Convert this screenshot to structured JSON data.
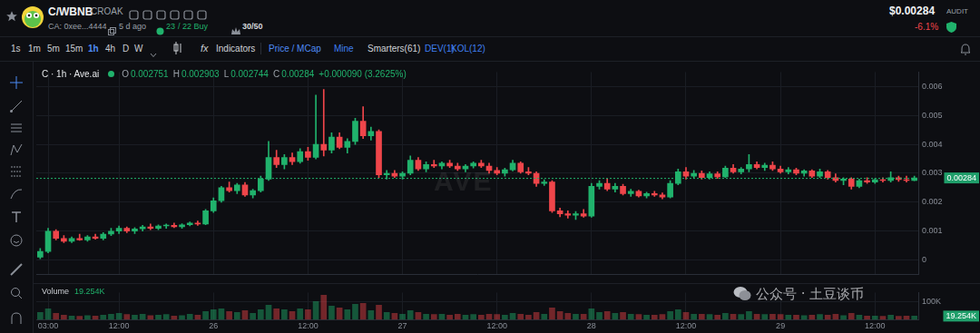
{
  "header": {
    "pair": "C/WBNB",
    "name": "CROAK",
    "contract": "CA: 0xee...4444",
    "age": "5 d ago",
    "txns": [
      "23",
      "/ 22 Buy"
    ],
    "holders": "30/50",
    "price": "$0.00284",
    "change": "-6.1%",
    "audit": "AUDIT"
  },
  "toolbar": {
    "intervals": [
      "1s",
      "1m",
      "5m",
      "15m",
      "1h",
      "4h",
      "D",
      "W"
    ],
    "active": "1h",
    "fx": "fx",
    "items": [
      {
        "text": "Indicators",
        "color": "#d0d3d8"
      },
      {
        "text": "Price / MCap",
        "color": "#4d8bf5"
      },
      {
        "text": "Mine",
        "color": "#3f7ff0"
      },
      {
        "text": "Smarters(61)",
        "color": "#d0d3d8"
      },
      {
        "text": "DEV(1)",
        "color": "#3f7ff0"
      },
      {
        "text": "KOL(12)",
        "color": "#3f7ff0"
      }
    ]
  },
  "legend": {
    "title": "C · 1h · Ave.ai",
    "ohlc": [
      [
        "O",
        "0.002751"
      ],
      [
        "H",
        "0.002903"
      ],
      [
        "L",
        "0.002744"
      ],
      [
        "C",
        "0.00284"
      ]
    ],
    "change": "+0.000090 (3.2625%)"
  },
  "watermarks": [
    "AVE",
    "公众号 · 土豆谈币"
  ],
  "chart_data": [
    {
      "type": "candlestick",
      "categories": [
        null,
        "03:00",
        null,
        null,
        null,
        null,
        null,
        null,
        null,
        null,
        "12:00",
        null,
        null,
        null,
        null,
        null,
        null,
        null,
        null,
        null,
        null,
        null,
        "26",
        null,
        null,
        null,
        null,
        null,
        null,
        null,
        null,
        null,
        null,
        null,
        "12:00",
        null,
        null,
        null,
        null,
        null,
        null,
        null,
        null,
        null,
        null,
        null,
        "27",
        null,
        null,
        null,
        null,
        null,
        null,
        null,
        null,
        null,
        null,
        null,
        "12:00",
        null,
        null,
        null,
        null,
        null,
        null,
        null,
        null,
        null,
        null,
        null,
        "28",
        null,
        null,
        null,
        null,
        null,
        null,
        null,
        null,
        null,
        null,
        null,
        "12:00",
        null,
        null,
        null,
        null,
        null,
        null,
        null,
        null,
        null,
        null,
        null,
        "29",
        null,
        null,
        null,
        null,
        null,
        null,
        null,
        null,
        null,
        null,
        null,
        "12:00",
        null,
        null,
        null,
        null,
        null
      ],
      "open": [
        0.0001,
        0.0003,
        0.001,
        0.00075,
        0.00065,
        0.00075,
        0.0007,
        0.0008,
        0.00075,
        0.0009,
        0.001,
        0.0011,
        0.001,
        0.00108,
        0.00115,
        0.0011,
        0.00118,
        0.0012,
        0.00115,
        0.00122,
        0.00128,
        0.00125,
        0.0017,
        0.00205,
        0.0025,
        0.0024,
        0.0026,
        0.00225,
        0.0024,
        0.0028,
        0.00355,
        0.0033,
        0.00355,
        0.0034,
        0.00375,
        0.00355,
        0.004,
        0.0038,
        0.00425,
        0.0039,
        0.0041,
        0.0048,
        0.0043,
        0.00445,
        0.00295,
        0.003,
        0.0029,
        0.003,
        0.00345,
        0.00315,
        0.0033,
        0.00325,
        0.00335,
        0.00325,
        0.00315,
        0.00325,
        0.00335,
        0.00325,
        0.0031,
        0.003,
        0.00312,
        0.00335,
        0.00305,
        0.003,
        0.00265,
        0.0027,
        0.0017,
        0.0016,
        0.00155,
        0.0016,
        0.00152,
        0.00255,
        0.00265,
        0.00245,
        0.00255,
        0.0023,
        0.00238,
        0.00222,
        0.0023,
        0.00225,
        0.00218,
        0.00265,
        0.00305,
        0.0029,
        0.003,
        0.00285,
        0.00298,
        0.00288,
        0.00318,
        0.00305,
        0.00315,
        0.0033,
        0.0032,
        0.00328,
        0.00315,
        0.00305,
        0.00312,
        0.003,
        0.00308,
        0.0029,
        0.00305,
        0.00285,
        0.00275,
        0.0028,
        0.00255,
        0.00275,
        0.0027,
        0.00278,
        0.00275,
        0.00285,
        0.00278,
        0.002751
      ],
      "high": [
        0.0004,
        0.0011,
        0.00105,
        0.00085,
        0.0008,
        0.0009,
        0.00085,
        0.0009,
        0.00095,
        0.0011,
        0.00118,
        0.00115,
        0.00112,
        0.0012,
        0.00125,
        0.00122,
        0.00125,
        0.00128,
        0.00126,
        0.00132,
        0.00135,
        0.00175,
        0.00215,
        0.00255,
        0.0027,
        0.00265,
        0.00268,
        0.00245,
        0.0029,
        0.0041,
        0.0038,
        0.00365,
        0.0037,
        0.00385,
        0.0039,
        0.0057,
        0.0059,
        0.0044,
        0.0044,
        0.0042,
        0.0049,
        0.0053,
        0.0046,
        0.0045,
        0.0031,
        0.0031,
        0.00305,
        0.0036,
        0.00355,
        0.0034,
        0.00345,
        0.0034,
        0.00345,
        0.00335,
        0.0033,
        0.0034,
        0.00345,
        0.00335,
        0.0032,
        0.00318,
        0.00345,
        0.0034,
        0.0032,
        0.00305,
        0.00278,
        0.00275,
        0.0018,
        0.0017,
        0.00168,
        0.00175,
        0.00265,
        0.00275,
        0.0028,
        0.00265,
        0.00262,
        0.00245,
        0.00242,
        0.00235,
        0.00238,
        0.00232,
        0.00275,
        0.00315,
        0.0032,
        0.0031,
        0.00308,
        0.00305,
        0.00305,
        0.00325,
        0.0033,
        0.0032,
        0.00365,
        0.0034,
        0.00335,
        0.0034,
        0.00325,
        0.0032,
        0.00318,
        0.00312,
        0.00312,
        0.00315,
        0.0031,
        0.00298,
        0.00285,
        0.00285,
        0.0028,
        0.00285,
        0.00282,
        0.00285,
        0.00305,
        0.0029,
        0.0029,
        0.002903
      ],
      "low": [
        5e-05,
        0.00025,
        0.0007,
        0.0006,
        0.0006,
        0.00068,
        0.00065,
        0.00072,
        0.0007,
        0.00085,
        0.00092,
        0.00095,
        0.00092,
        0.001,
        0.00105,
        0.00105,
        0.0011,
        0.00112,
        0.0011,
        0.00118,
        0.0012,
        0.00122,
        0.00165,
        0.002,
        0.00235,
        0.0023,
        0.0022,
        0.00215,
        0.00235,
        0.00275,
        0.0032,
        0.00315,
        0.0033,
        0.00335,
        0.00345,
        0.0035,
        0.0036,
        0.0037,
        0.00385,
        0.0037,
        0.004,
        0.0042,
        0.00415,
        0.00285,
        0.0028,
        0.00285,
        0.0028,
        0.00295,
        0.0031,
        0.00305,
        0.0032,
        0.00315,
        0.0032,
        0.0031,
        0.00305,
        0.00318,
        0.0032,
        0.003,
        0.00295,
        0.0029,
        0.00308,
        0.003,
        0.00295,
        0.00255,
        0.00258,
        0.00165,
        0.0015,
        0.00145,
        0.0014,
        0.00148,
        0.00148,
        0.00245,
        0.0024,
        0.00235,
        0.00225,
        0.0022,
        0.00218,
        0.00215,
        0.0022,
        0.00212,
        0.00215,
        0.0026,
        0.0028,
        0.00282,
        0.0028,
        0.0028,
        0.00282,
        0.00285,
        0.003,
        0.00298,
        0.00305,
        0.00315,
        0.0031,
        0.0031,
        0.003,
        0.00298,
        0.00295,
        0.0029,
        0.00285,
        0.00285,
        0.0028,
        0.0027,
        0.0026,
        0.00245,
        0.0025,
        0.00265,
        0.00265,
        0.0027,
        0.0027,
        0.00272,
        0.0027,
        0.002744
      ],
      "close": [
        0.0003,
        0.001,
        0.00075,
        0.00065,
        0.00075,
        0.0007,
        0.0008,
        0.00075,
        0.0009,
        0.001,
        0.0011,
        0.001,
        0.00108,
        0.00115,
        0.0011,
        0.00118,
        0.0012,
        0.00115,
        0.00122,
        0.00128,
        0.00125,
        0.0017,
        0.00205,
        0.0025,
        0.0024,
        0.0026,
        0.00225,
        0.0024,
        0.0028,
        0.00355,
        0.0033,
        0.00355,
        0.0034,
        0.00375,
        0.00355,
        0.004,
        0.0038,
        0.00425,
        0.0039,
        0.0041,
        0.0048,
        0.0043,
        0.00445,
        0.00295,
        0.003,
        0.0029,
        0.003,
        0.00345,
        0.00315,
        0.0033,
        0.00325,
        0.00335,
        0.00325,
        0.00315,
        0.00325,
        0.00335,
        0.00325,
        0.0031,
        0.003,
        0.00312,
        0.00335,
        0.00305,
        0.003,
        0.00265,
        0.0027,
        0.0017,
        0.0016,
        0.00155,
        0.0016,
        0.00152,
        0.00255,
        0.00265,
        0.00245,
        0.00255,
        0.0023,
        0.00238,
        0.00222,
        0.0023,
        0.00225,
        0.00218,
        0.00265,
        0.00305,
        0.0029,
        0.003,
        0.00285,
        0.00298,
        0.00288,
        0.00318,
        0.00305,
        0.00315,
        0.0033,
        0.0032,
        0.00328,
        0.00315,
        0.00305,
        0.00312,
        0.003,
        0.00308,
        0.0029,
        0.00305,
        0.00285,
        0.00275,
        0.0028,
        0.00255,
        0.00275,
        0.0027,
        0.00278,
        0.00275,
        0.00285,
        0.00278,
        0.00275,
        0.00284
      ],
      "ylim": [
        -0.0005,
        0.0065
      ],
      "yticks": [
        0,
        0.001,
        0.002,
        0.003,
        0.004,
        0.005,
        0.006
      ],
      "grid": true,
      "tick_labels": "y",
      "annotations": [
        {
          "value": 0.00284,
          "label": "0.00284"
        }
      ]
    },
    {
      "type": "bar",
      "title": "Volume",
      "categories": [
        null,
        "03:00",
        null,
        null,
        null,
        null,
        null,
        null,
        null,
        null,
        "12:00",
        null,
        null,
        null,
        null,
        null,
        null,
        null,
        null,
        null,
        null,
        null,
        "26",
        null,
        null,
        null,
        null,
        null,
        null,
        null,
        null,
        null,
        null,
        null,
        "12:00",
        null,
        null,
        null,
        null,
        null,
        null,
        null,
        null,
        null,
        null,
        null,
        "27",
        null,
        null,
        null,
        null,
        null,
        null,
        null,
        null,
        null,
        null,
        null,
        "12:00",
        null,
        null,
        null,
        null,
        null,
        null,
        null,
        null,
        null,
        null,
        null,
        "28",
        null,
        null,
        null,
        null,
        null,
        null,
        null,
        null,
        null,
        null,
        null,
        "12:00",
        null,
        null,
        null,
        null,
        null,
        null,
        null,
        null,
        null,
        null,
        null,
        "29",
        null,
        null,
        null,
        null,
        null,
        null,
        null,
        null,
        null,
        null,
        null,
        "12:00",
        null,
        null,
        null,
        null,
        null
      ],
      "values": [
        40000,
        60000,
        35000,
        25000,
        20000,
        18000,
        22000,
        20000,
        25000,
        30000,
        35000,
        28000,
        25000,
        30000,
        22000,
        25000,
        28000,
        20000,
        22000,
        30000,
        25000,
        45000,
        55000,
        60000,
        45000,
        40000,
        50000,
        35000,
        55000,
        80000,
        60000,
        55000,
        45000,
        60000,
        55000,
        100000,
        135000,
        75000,
        65000,
        55000,
        85000,
        90000,
        50000,
        80000,
        40000,
        35000,
        30000,
        50000,
        40000,
        30000,
        28000,
        30000,
        25000,
        30000,
        25000,
        28000,
        25000,
        30000,
        28000,
        25000,
        35000,
        30000,
        25000,
        40000,
        30000,
        65000,
        45000,
        35000,
        30000,
        30000,
        60000,
        40000,
        45000,
        35000,
        40000,
        30000,
        28000,
        25000,
        25000,
        28000,
        45000,
        55000,
        40000,
        30000,
        30000,
        28000,
        25000,
        35000,
        30000,
        28000,
        45000,
        30000,
        28000,
        30000,
        28000,
        25000,
        25000,
        22000,
        25000,
        28000,
        25000,
        30000,
        22000,
        35000,
        25000,
        20000,
        20000,
        18000,
        25000,
        18000,
        20000,
        19254
      ],
      "ylim": [
        0,
        150000
      ],
      "yticks": [
        {
          "value": 100000,
          "label": "100K"
        }
      ],
      "grid": true,
      "annotations": [
        {
          "value": 19254,
          "label": "19.254K"
        }
      ]
    }
  ]
}
